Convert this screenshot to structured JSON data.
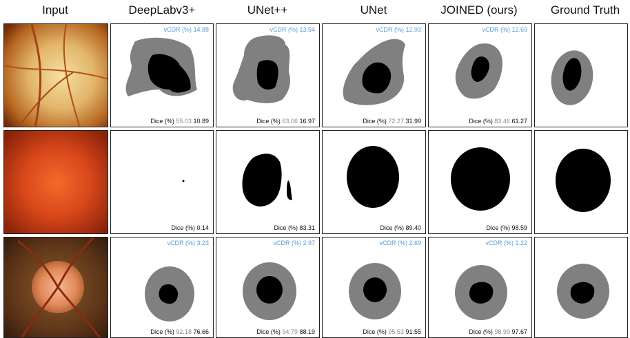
{
  "headers": {
    "input": "Input",
    "deeplab": "DeepLabv3+",
    "unetpp": "UNet++",
    "unet": "UNet",
    "joined": "JOINED (ours)",
    "gt": "Ground Truth"
  },
  "labels": {
    "vcdr_prefix": "vCDR (%)",
    "dice_prefix": "Dice (%)"
  },
  "rows": [
    {
      "deeplab": {
        "vcdr": "14.88",
        "dice_disc": "55.03",
        "dice_cup": "10.89"
      },
      "unetpp": {
        "vcdr": "13.54",
        "dice_disc": "63.06",
        "dice_cup": "16.97"
      },
      "unet": {
        "vcdr": "12.93",
        "dice_disc": "72.27",
        "dice_cup": "31.99"
      },
      "joined": {
        "vcdr": "12.69",
        "dice_disc": "83.46",
        "dice_cup": "61.27"
      }
    },
    {
      "deeplab": {
        "dice": "0.14"
      },
      "unetpp": {
        "dice": "83.31"
      },
      "unet": {
        "dice": "89.40"
      },
      "joined": {
        "dice": "98.59"
      }
    },
    {
      "deeplab": {
        "vcdr": "3.23",
        "dice_disc": "92.18",
        "dice_cup": "76.66"
      },
      "unetpp": {
        "vcdr": "2.97",
        "dice_disc": "94.79",
        "dice_cup": "88.19"
      },
      "unet": {
        "vcdr": "2.69",
        "dice_disc": "95.53",
        "dice_cup": "91.55"
      },
      "joined": {
        "vcdr": "1.22",
        "dice_disc": "98.99",
        "dice_cup": "97.67"
      }
    }
  ],
  "colors": {
    "disc": "#808080",
    "cup": "#000000",
    "vcdr_text": "#5b9bd5",
    "dice_disc_text": "#8c8c8c"
  }
}
